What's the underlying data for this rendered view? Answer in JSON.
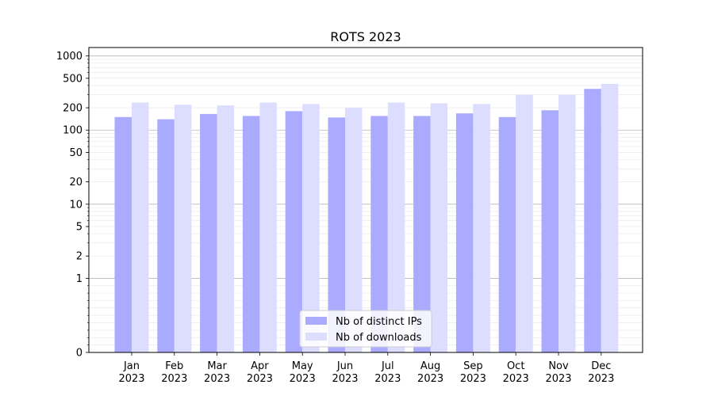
{
  "chart_data": {
    "type": "bar",
    "title": "ROTS 2023",
    "xlabel": "",
    "ylabel": "",
    "y_scale": "symlog",
    "ylim": [
      0,
      1300
    ],
    "y_ticks": [
      0,
      1,
      2,
      5,
      10,
      20,
      50,
      100,
      200,
      500,
      1000
    ],
    "grid": true,
    "legend_position": "bottom-center",
    "categories": [
      [
        "Jan",
        "2023"
      ],
      [
        "Feb",
        "2023"
      ],
      [
        "Mar",
        "2023"
      ],
      [
        "Apr",
        "2023"
      ],
      [
        "May",
        "2023"
      ],
      [
        "Jun",
        "2023"
      ],
      [
        "Jul",
        "2023"
      ],
      [
        "Aug",
        "2023"
      ],
      [
        "Sep",
        "2023"
      ],
      [
        "Oct",
        "2023"
      ],
      [
        "Nov",
        "2023"
      ],
      [
        "Dec",
        "2023"
      ]
    ],
    "series": [
      {
        "name": "Nb of distinct IPs",
        "color": "#aaaaff",
        "values": [
          150,
          140,
          165,
          155,
          180,
          148,
          155,
          155,
          168,
          150,
          185,
          360
        ]
      },
      {
        "name": "Nb of downloads",
        "color": "#ddddff",
        "values": [
          235,
          220,
          215,
          235,
          225,
          200,
          235,
          230,
          225,
          300,
          300,
          420
        ]
      }
    ]
  }
}
